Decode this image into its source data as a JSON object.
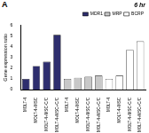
{
  "chart_data": {
    "type": "bar",
    "title": "6 hr",
    "panel_label": "A",
    "y_label": "Gene expression ratio",
    "categories": [
      "MOLT-4",
      "MOLT-4+MSC",
      "MOLT-4+MSC-C/C",
      "MOLT-4+MSC+C/C",
      "MOLT-4",
      "MOLT-4+MSC",
      "MOLT-4+MSC-C/C",
      "MOLT-4+MSC+C/C",
      "MOLT-4",
      "MOLT-4+MSC",
      "MOLT-4+MSC-C/C",
      "MOLT-4+MSC+C/C"
    ],
    "series": [
      {
        "name": "MDR1",
        "color": "#2e2e6e",
        "values": [
          1.0,
          2.2,
          2.6,
          5.1,
          null,
          null,
          null,
          null,
          null,
          null,
          null,
          null
        ]
      },
      {
        "name": "MRP",
        "color": "#c8c8c8",
        "values": [
          null,
          null,
          null,
          null,
          1.0,
          1.1,
          1.2,
          1.3,
          null,
          null,
          null,
          null
        ]
      },
      {
        "name": "BCRP",
        "color": "#ffffff",
        "values": [
          null,
          null,
          null,
          null,
          null,
          null,
          null,
          null,
          1.0,
          1.3,
          3.7,
          4.5
        ]
      }
    ],
    "ylim": [
      0,
      6
    ],
    "yticks": [
      0,
      1,
      2,
      3,
      4,
      5,
      6
    ],
    "grid": false,
    "legend": "top-right"
  }
}
